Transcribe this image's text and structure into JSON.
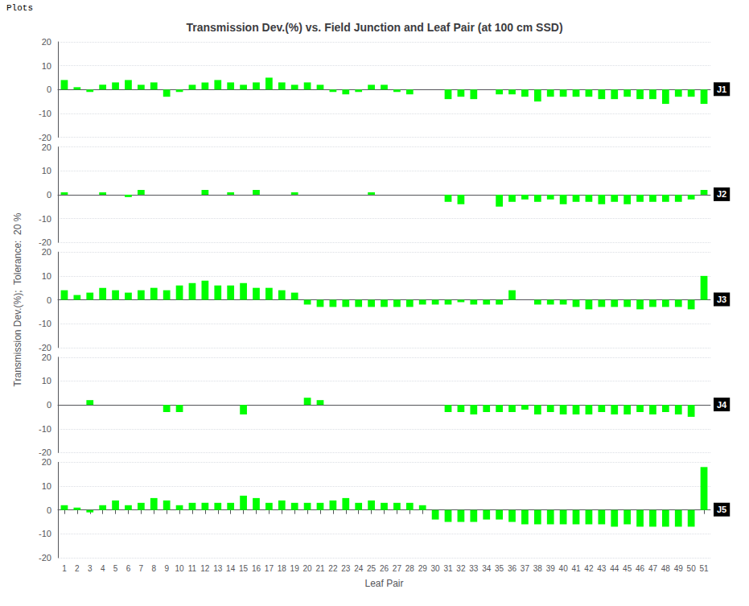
{
  "chart_data": [
    {
      "type": "bar",
      "title": "Transmission Dev.(%) vs. Field Junction and Leaf Pair (at 100 cm SSD)",
      "annotations": [
        "Plots",
        "J1"
      ],
      "categories": [
        1,
        2,
        3,
        4,
        5,
        6,
        7,
        8,
        9,
        10,
        11,
        12,
        13,
        14,
        15,
        16,
        17,
        18,
        19,
        20,
        21,
        22,
        23,
        24,
        25,
        26,
        27,
        28,
        29,
        30,
        31,
        32,
        33,
        34,
        35,
        36,
        37,
        38,
        39,
        40,
        41,
        42,
        43,
        44,
        45,
        46,
        47,
        48,
        49,
        50,
        51
      ],
      "values": [
        4,
        1,
        -1,
        2,
        3,
        4,
        2,
        3,
        -3,
        -1,
        2,
        3,
        4,
        3,
        2,
        3,
        5,
        3,
        2,
        3,
        2,
        -1,
        -2,
        -1,
        2,
        2,
        -1,
        -2,
        0,
        0,
        -4,
        -3,
        -4,
        0,
        -2,
        -2,
        -3,
        -5,
        -3,
        -3,
        -3,
        -3,
        -4,
        -4,
        -3,
        -4,
        -4,
        -6,
        -3,
        -3,
        -6
      ],
      "color": "#00ff00",
      "ylim": [
        -20,
        20
      ],
      "yticks": [
        -20,
        -10,
        0,
        10,
        20
      ],
      "grid": true,
      "tick_labels": "y"
    },
    {
      "type": "bar",
      "annotations": [
        "J2"
      ],
      "categories": [
        1,
        2,
        3,
        4,
        5,
        6,
        7,
        8,
        9,
        10,
        11,
        12,
        13,
        14,
        15,
        16,
        17,
        18,
        19,
        20,
        21,
        22,
        23,
        24,
        25,
        26,
        27,
        28,
        29,
        30,
        31,
        32,
        33,
        34,
        35,
        36,
        37,
        38,
        39,
        40,
        41,
        42,
        43,
        44,
        45,
        46,
        47,
        48,
        49,
        50,
        51
      ],
      "values": [
        1,
        0,
        0,
        1,
        0,
        -1,
        2,
        0,
        0,
        0,
        0,
        2,
        0,
        1,
        0,
        2,
        0,
        0,
        1,
        0,
        0,
        0,
        0,
        0,
        1,
        0,
        0,
        0,
        0,
        0,
        -3,
        -4,
        0,
        0,
        -5,
        -3,
        -2,
        -3,
        -2,
        -4,
        -3,
        -3,
        -4,
        -3,
        -4,
        -3,
        -3,
        -3,
        -3,
        -2,
        2
      ],
      "color": "#00ff00",
      "ylim": [
        -20,
        20
      ],
      "yticks": [
        -20,
        -10,
        0,
        10,
        20
      ],
      "grid": true,
      "tick_labels": "y"
    },
    {
      "type": "bar",
      "ylabel": "Transmission Dev.(%);  Tolerance:  20 %",
      "annotations": [
        "J3"
      ],
      "categories": [
        1,
        2,
        3,
        4,
        5,
        6,
        7,
        8,
        9,
        10,
        11,
        12,
        13,
        14,
        15,
        16,
        17,
        18,
        19,
        20,
        21,
        22,
        23,
        24,
        25,
        26,
        27,
        28,
        29,
        30,
        31,
        32,
        33,
        34,
        35,
        36,
        37,
        38,
        39,
        40,
        41,
        42,
        43,
        44,
        45,
        46,
        47,
        48,
        49,
        50,
        51
      ],
      "values": [
        4,
        2,
        3,
        5,
        4,
        3,
        4,
        5,
        4,
        6,
        7,
        8,
        6,
        6,
        7,
        5,
        5,
        4,
        3,
        -2,
        -3,
        -3,
        -3,
        -3,
        -3,
        -3,
        -3,
        -3,
        -2,
        -2,
        -2,
        -1,
        -2,
        -2,
        -2,
        4,
        0,
        -2,
        -2,
        -2,
        -3,
        -4,
        -3,
        -3,
        -3,
        -4,
        -3,
        -3,
        -3,
        -4,
        10
      ],
      "color": "#00ff00",
      "ylim": [
        -20,
        20
      ],
      "yticks": [
        -20,
        -10,
        0,
        10,
        20
      ],
      "grid": true,
      "tick_labels": "y"
    },
    {
      "type": "bar",
      "annotations": [
        "J4"
      ],
      "categories": [
        1,
        2,
        3,
        4,
        5,
        6,
        7,
        8,
        9,
        10,
        11,
        12,
        13,
        14,
        15,
        16,
        17,
        18,
        19,
        20,
        21,
        22,
        23,
        24,
        25,
        26,
        27,
        28,
        29,
        30,
        31,
        32,
        33,
        34,
        35,
        36,
        37,
        38,
        39,
        40,
        41,
        42,
        43,
        44,
        45,
        46,
        47,
        48,
        49,
        50,
        51
      ],
      "values": [
        0,
        0,
        2,
        0,
        0,
        0,
        0,
        0,
        -3,
        -3,
        0,
        0,
        0,
        0,
        -4,
        0,
        0,
        0,
        0,
        3,
        2,
        0,
        0,
        0,
        0,
        0,
        0,
        0,
        0,
        0,
        -3,
        -3,
        -4,
        -3,
        -3,
        -3,
        -2,
        -4,
        -3,
        -4,
        -4,
        -4,
        -3,
        -4,
        -4,
        -3,
        -4,
        -3,
        -4,
        -5,
        0
      ],
      "color": "#00ff00",
      "ylim": [
        -20,
        20
      ],
      "yticks": [
        -20,
        -10,
        0,
        10,
        20
      ],
      "grid": true,
      "tick_labels": "y"
    },
    {
      "type": "bar",
      "xlabel": "Leaf Pair",
      "annotations": [
        "J5"
      ],
      "categories": [
        1,
        2,
        3,
        4,
        5,
        6,
        7,
        8,
        9,
        10,
        11,
        12,
        13,
        14,
        15,
        16,
        17,
        18,
        19,
        20,
        21,
        22,
        23,
        24,
        25,
        26,
        27,
        28,
        29,
        30,
        31,
        32,
        33,
        34,
        35,
        36,
        37,
        38,
        39,
        40,
        41,
        42,
        43,
        44,
        45,
        46,
        47,
        48,
        49,
        50,
        51
      ],
      "values": [
        2,
        1,
        -1,
        2,
        4,
        2,
        3,
        5,
        4,
        2,
        3,
        3,
        3,
        3,
        6,
        5,
        3,
        4,
        3,
        3,
        3,
        4,
        5,
        3,
        4,
        3,
        3,
        3,
        2,
        -4,
        -5,
        -5,
        -5,
        -4,
        -4,
        -5,
        -6,
        -6,
        -6,
        -6,
        -6,
        -6,
        -6,
        -7,
        -6,
        -7,
        -7,
        -7,
        -7,
        -7,
        18
      ],
      "color": "#00ff00",
      "ylim": [
        -20,
        20
      ],
      "yticks": [
        -20,
        -10,
        0,
        10,
        20
      ],
      "grid": true
    }
  ]
}
